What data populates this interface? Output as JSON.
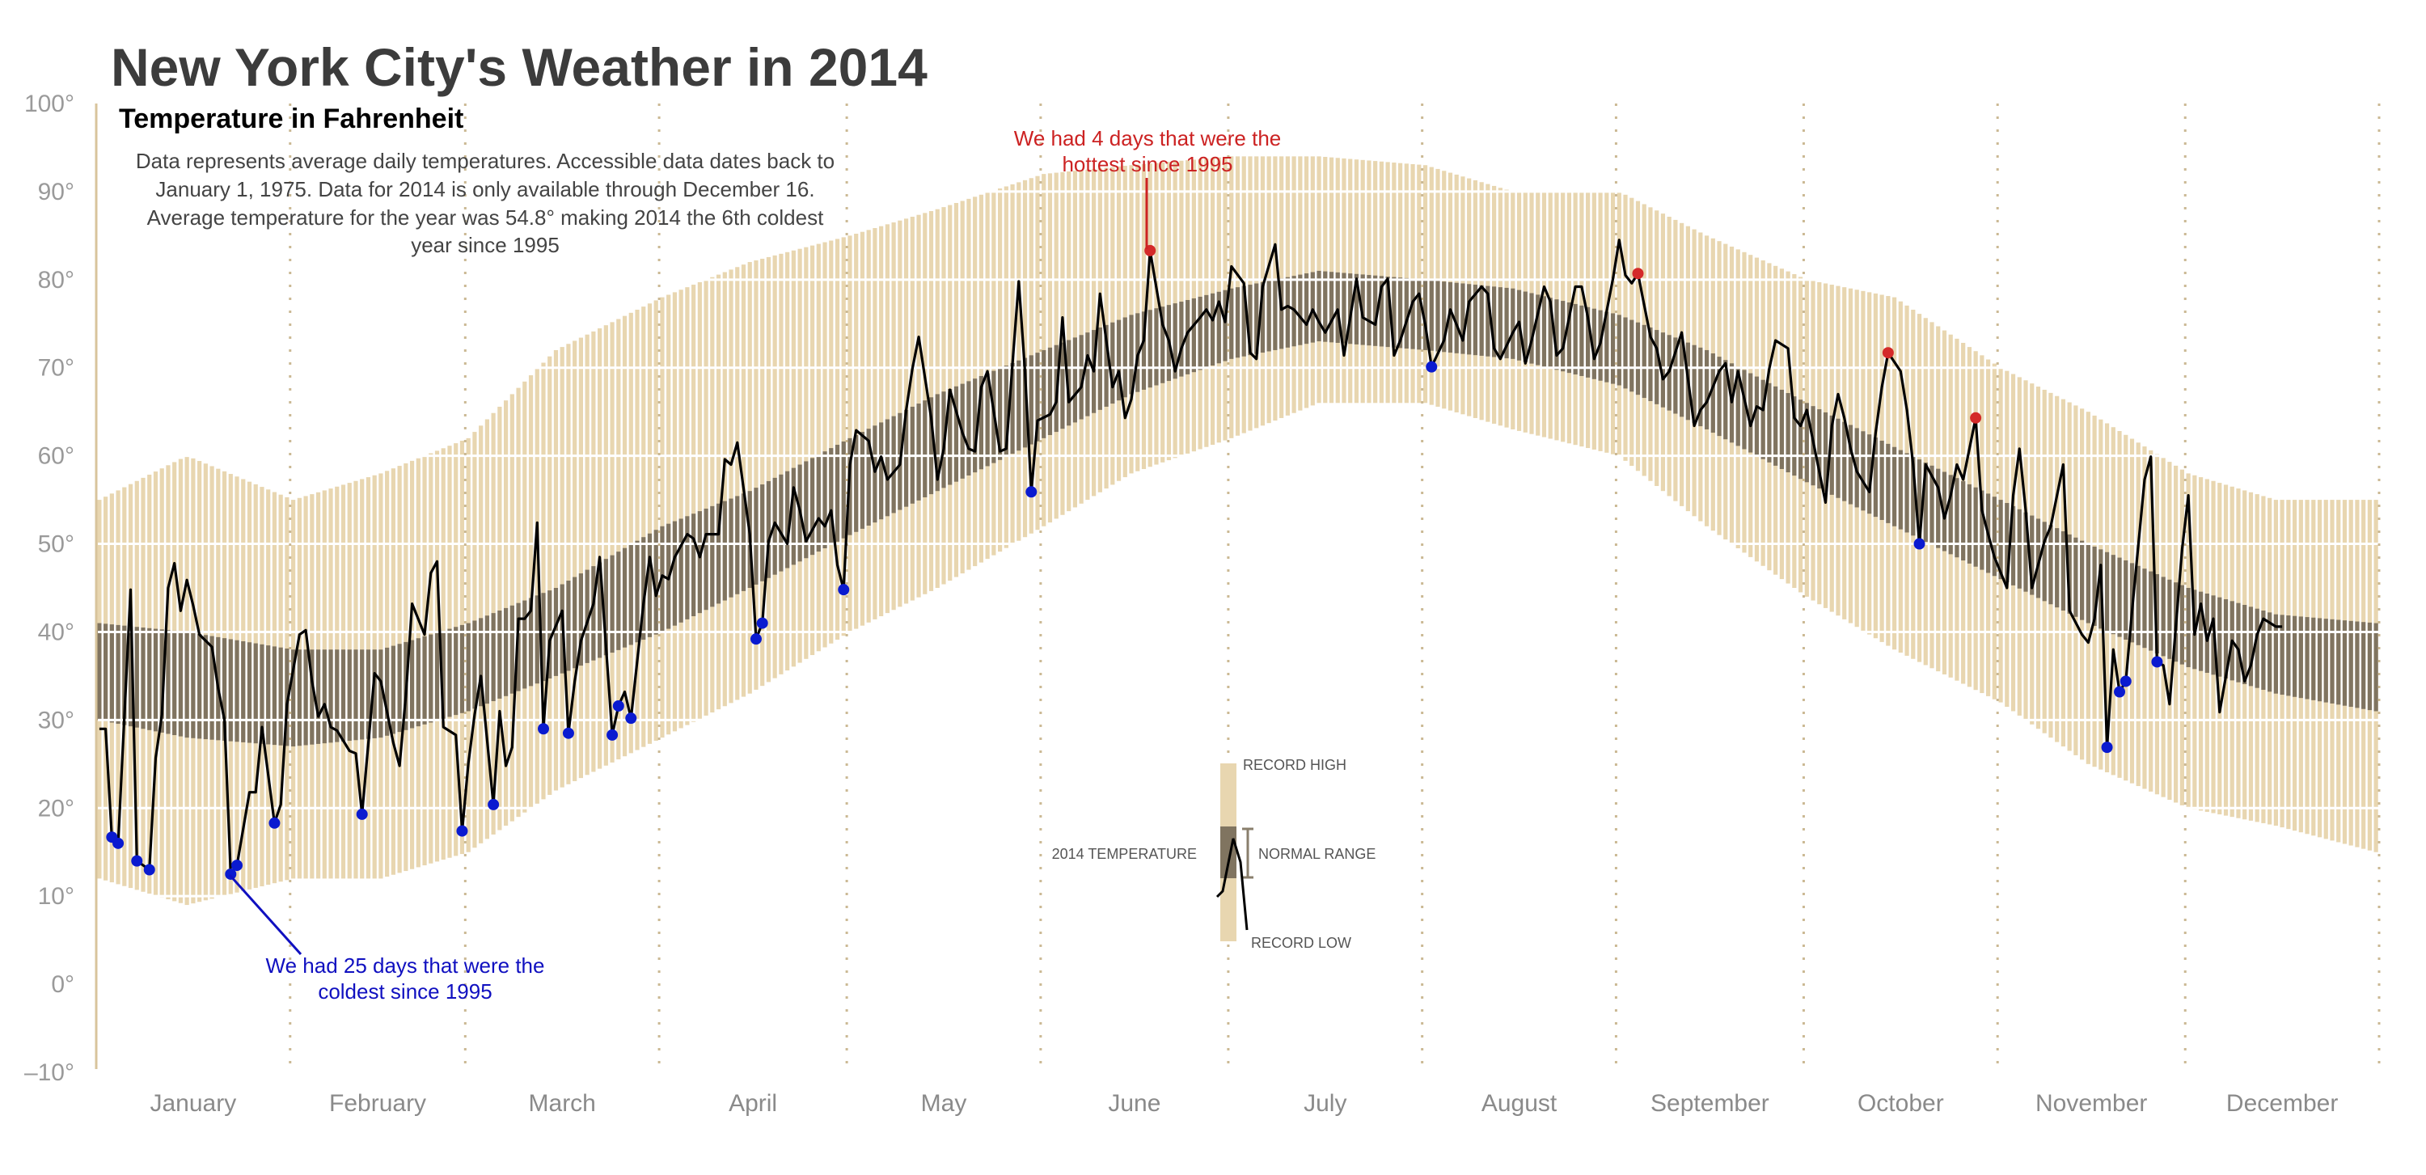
{
  "chart_data": {
    "type": "bar",
    "title": "New York City's Weather in 2014",
    "subtitle": "Temperature in Fahrenheit",
    "description": [
      "Data represents average daily temperatures. Accessible data dates back to",
      "January 1, 1975. Data for 2014 is only available through December 16.",
      "Average temperature for the year was 54.8° making 2014 the 6th coldest",
      "year since 1995"
    ],
    "ylim": [
      -10,
      100
    ],
    "yticks": [
      "100°",
      "90°",
      "80°",
      "70°",
      "60°",
      "50°",
      "40°",
      "30°",
      "20°",
      "10°",
      "0°",
      "–10°"
    ],
    "ytick_values": [
      100,
      90,
      80,
      70,
      60,
      50,
      40,
      30,
      20,
      10,
      0,
      -10
    ],
    "months": [
      "January",
      "February",
      "March",
      "April",
      "May",
      "June",
      "July",
      "August",
      "September",
      "October",
      "November",
      "December"
    ],
    "grid": "horizontal white lines every 10°, dotted month separators",
    "colors": {
      "record": "#e8d6b0",
      "normal": "#807460",
      "line": "#000000",
      "record_low_dot": "#0a1ad0",
      "record_high_dot": "#d42a2a"
    },
    "history_profile": {
      "dates": [
        "01-01",
        "01-15",
        "02-01",
        "02-15",
        "03-01",
        "03-15",
        "04-01",
        "04-15",
        "05-01",
        "05-15",
        "06-01",
        "06-15",
        "07-01",
        "07-15",
        "08-01",
        "08-15",
        "09-01",
        "09-15",
        "10-01",
        "10-15",
        "11-01",
        "11-15",
        "12-01",
        "12-15",
        "12-31"
      ],
      "record_low": [
        12,
        9,
        12,
        12,
        15,
        22,
        28,
        33,
        40,
        45,
        52,
        58,
        62,
        66,
        66,
        63,
        60,
        52,
        44,
        38,
        32,
        25,
        20,
        18,
        15
      ],
      "normal_low": [
        30,
        28,
        27,
        28,
        31,
        35,
        40,
        45,
        51,
        56,
        62,
        67,
        71,
        73,
        72,
        71,
        68,
        63,
        57,
        52,
        46,
        41,
        36,
        33,
        31
      ],
      "normal_high": [
        41,
        40,
        38,
        38,
        41,
        45,
        52,
        56,
        62,
        67,
        72,
        76,
        79,
        81,
        80,
        79,
        76,
        72,
        66,
        61,
        55,
        50,
        45,
        42,
        41
      ],
      "record_high": [
        55,
        60,
        55,
        58,
        62,
        72,
        78,
        82,
        85,
        88,
        92,
        93,
        94,
        94,
        93,
        90,
        90,
        85,
        80,
        78,
        70,
        65,
        58,
        55,
        55
      ]
    },
    "series_2014": [
      [
        "01-01",
        29
      ],
      [
        "01-02",
        29
      ],
      [
        "01-03",
        16.7
      ],
      [
        "01-04",
        16
      ],
      [
        "01-06",
        44.8
      ],
      [
        "01-07",
        14
      ],
      [
        "01-09",
        13
      ],
      [
        "01-10",
        25.7
      ],
      [
        "01-11",
        30.6
      ],
      [
        "01-12",
        45
      ],
      [
        "01-13",
        47.8
      ],
      [
        "01-14",
        42.4
      ],
      [
        "01-15",
        45.9
      ],
      [
        "01-16",
        43
      ],
      [
        "01-17",
        39.7
      ],
      [
        "01-19",
        38.3
      ],
      [
        "01-20",
        33.6
      ],
      [
        "01-21",
        30
      ],
      [
        "01-22",
        12.5
      ],
      [
        "01-23",
        13.5
      ],
      [
        "01-25",
        21.8
      ],
      [
        "01-26",
        21.8
      ],
      [
        "01-27",
        29.2
      ],
      [
        "01-29",
        18.3
      ],
      [
        "01-30",
        20.4
      ],
      [
        "01-31",
        31.8
      ],
      [
        "02-02",
        39.7
      ],
      [
        "02-03",
        40.2
      ],
      [
        "02-04",
        34.4
      ],
      [
        "02-05",
        30.4
      ],
      [
        "02-06",
        31.8
      ],
      [
        "02-07",
        29.2
      ],
      [
        "02-08",
        28.8
      ],
      [
        "02-10",
        26.5
      ],
      [
        "02-11",
        26.2
      ],
      [
        "02-12",
        19.3
      ],
      [
        "02-14",
        35.3
      ],
      [
        "02-15",
        34.4
      ],
      [
        "02-17",
        27.4
      ],
      [
        "02-18",
        24.8
      ],
      [
        "02-19",
        32.7
      ],
      [
        "02-20",
        43.2
      ],
      [
        "02-22",
        39.7
      ],
      [
        "02-23",
        46.7
      ],
      [
        "02-24",
        48
      ],
      [
        "02-25",
        29.2
      ],
      [
        "02-27",
        28.3
      ],
      [
        "02-28",
        17.4
      ],
      [
        "03-01",
        25.1
      ],
      [
        "03-02",
        30.6
      ],
      [
        "03-03",
        35
      ],
      [
        "03-05",
        20.4
      ],
      [
        "03-06",
        31
      ],
      [
        "03-07",
        24.8
      ],
      [
        "03-08",
        26.9
      ],
      [
        "03-09",
        41.5
      ],
      [
        "03-10",
        41.5
      ],
      [
        "03-11",
        42.4
      ],
      [
        "03-12",
        52.4
      ],
      [
        "03-13",
        29
      ],
      [
        "03-14",
        39
      ],
      [
        "03-16",
        42.4
      ],
      [
        "03-17",
        28.5
      ],
      [
        "03-18",
        34.4
      ],
      [
        "03-19",
        39
      ],
      [
        "03-21",
        43.2
      ],
      [
        "03-22",
        48.5
      ],
      [
        "03-24",
        28.3
      ],
      [
        "03-25",
        31.6
      ],
      [
        "03-26",
        33.2
      ],
      [
        "03-27",
        30.2
      ],
      [
        "03-29",
        43.2
      ],
      [
        "03-30",
        48.5
      ],
      [
        "03-31",
        44.1
      ],
      [
        "04-01",
        46.4
      ],
      [
        "04-02",
        46
      ],
      [
        "04-03",
        48.5
      ],
      [
        "04-05",
        51.1
      ],
      [
        "04-06",
        50.6
      ],
      [
        "04-07",
        48.5
      ],
      [
        "04-08",
        51.1
      ],
      [
        "04-10",
        51.1
      ],
      [
        "04-11",
        59.6
      ],
      [
        "04-12",
        59
      ],
      [
        "04-13",
        61.5
      ],
      [
        "04-15",
        51.1
      ],
      [
        "04-16",
        39.2
      ],
      [
        "04-17",
        41
      ],
      [
        "04-18",
        50.3
      ],
      [
        "04-19",
        52.4
      ],
      [
        "04-21",
        50
      ],
      [
        "04-22",
        56.4
      ],
      [
        "04-23",
        53.8
      ],
      [
        "04-24",
        50.3
      ],
      [
        "04-26",
        52.9
      ],
      [
        "04-27",
        52
      ],
      [
        "04-28",
        53.8
      ],
      [
        "04-29",
        47.6
      ],
      [
        "04-30",
        44.8
      ],
      [
        "05-01",
        59
      ],
      [
        "05-02",
        62.9
      ],
      [
        "05-04",
        61.7
      ],
      [
        "05-05",
        58.2
      ],
      [
        "05-06",
        59.9
      ],
      [
        "05-07",
        57.3
      ],
      [
        "05-09",
        59
      ],
      [
        "05-10",
        65.2
      ],
      [
        "05-11",
        69.9
      ],
      [
        "05-12",
        73.5
      ],
      [
        "05-14",
        64.3
      ],
      [
        "05-15",
        57.3
      ],
      [
        "05-16",
        60.8
      ],
      [
        "05-17",
        67.5
      ],
      [
        "05-19",
        62.6
      ],
      [
        "05-20",
        60.8
      ],
      [
        "05-21",
        60.5
      ],
      [
        "05-22",
        67.8
      ],
      [
        "05-23",
        69.6
      ],
      [
        "05-25",
        60.5
      ],
      [
        "05-26",
        60.8
      ],
      [
        "05-27",
        70.5
      ],
      [
        "05-28",
        79.8
      ],
      [
        "05-29",
        69.6
      ],
      [
        "05-30",
        55.9
      ],
      [
        "05-31",
        64
      ],
      [
        "06-02",
        64.7
      ],
      [
        "06-03",
        66.1
      ],
      [
        "06-04",
        75.7
      ],
      [
        "06-05",
        66.1
      ],
      [
        "06-07",
        67.8
      ],
      [
        "06-08",
        71.4
      ],
      [
        "06-09",
        69.6
      ],
      [
        "06-10",
        78.4
      ],
      [
        "06-12",
        67.8
      ],
      [
        "06-13",
        69.6
      ],
      [
        "06-14",
        64.3
      ],
      [
        "06-15",
        66.4
      ],
      [
        "06-16",
        71.4
      ],
      [
        "06-17",
        73.1
      ],
      [
        "06-18",
        83.3
      ],
      [
        "06-20",
        74.9
      ],
      [
        "06-21",
        73.1
      ],
      [
        "06-22",
        69.6
      ],
      [
        "06-23",
        72.2
      ],
      [
        "06-24",
        74
      ],
      [
        "06-26",
        75.7
      ],
      [
        "06-27",
        76.6
      ],
      [
        "06-28",
        75.4
      ],
      [
        "06-29",
        77.5
      ],
      [
        "06-30",
        75.2
      ],
      [
        "07-01",
        81.5
      ],
      [
        "07-03",
        79.6
      ],
      [
        "07-04",
        71.7
      ],
      [
        "07-05",
        71
      ],
      [
        "07-06",
        79.2
      ],
      [
        "07-08",
        84
      ],
      [
        "07-09",
        76.6
      ],
      [
        "07-10",
        77
      ],
      [
        "07-11",
        76.6
      ],
      [
        "07-13",
        74.9
      ],
      [
        "07-14",
        76.6
      ],
      [
        "07-15",
        75.2
      ],
      [
        "07-16",
        74
      ],
      [
        "07-18",
        76.6
      ],
      [
        "07-19",
        71.4
      ],
      [
        "07-20",
        75.7
      ],
      [
        "07-21",
        80.1
      ],
      [
        "07-22",
        75.7
      ],
      [
        "07-24",
        74.9
      ],
      [
        "07-25",
        79.2
      ],
      [
        "07-26",
        80.1
      ],
      [
        "07-27",
        71.4
      ],
      [
        "07-28",
        73.1
      ],
      [
        "07-30",
        77.5
      ],
      [
        "07-31",
        78.4
      ],
      [
        "08-01",
        74.9
      ],
      [
        "08-02",
        70.1
      ],
      [
        "08-04",
        73.1
      ],
      [
        "08-05",
        76.6
      ],
      [
        "08-06",
        74.9
      ],
      [
        "08-07",
        73.1
      ],
      [
        "08-08",
        77.5
      ],
      [
        "08-10",
        79.2
      ],
      [
        "08-11",
        78.4
      ],
      [
        "08-12",
        72.2
      ],
      [
        "08-13",
        71
      ],
      [
        "08-15",
        74
      ],
      [
        "08-16",
        75.2
      ],
      [
        "08-17",
        70.5
      ],
      [
        "08-18",
        73.1
      ],
      [
        "08-20",
        79.2
      ],
      [
        "08-21",
        77.5
      ],
      [
        "08-22",
        71.4
      ],
      [
        "08-23",
        72.2
      ],
      [
        "08-25",
        79.2
      ],
      [
        "08-26",
        79.2
      ],
      [
        "08-27",
        75.7
      ],
      [
        "08-28",
        71
      ],
      [
        "08-29",
        72.8
      ],
      [
        "08-31",
        80.1
      ],
      [
        "09-01",
        84.5
      ],
      [
        "09-02",
        80.5
      ],
      [
        "09-03",
        79.6
      ],
      [
        "09-04",
        80.7
      ],
      [
        "09-06",
        73.5
      ],
      [
        "09-07",
        72.2
      ],
      [
        "09-08",
        68.7
      ],
      [
        "09-09",
        69.6
      ],
      [
        "09-11",
        74
      ],
      [
        "09-12",
        68.7
      ],
      [
        "09-13",
        63.4
      ],
      [
        "09-14",
        65.2
      ],
      [
        "09-15",
        66.1
      ],
      [
        "09-17",
        69.6
      ],
      [
        "09-18",
        70.5
      ],
      [
        "09-19",
        66.1
      ],
      [
        "09-20",
        69.6
      ],
      [
        "09-22",
        63.4
      ],
      [
        "09-23",
        65.6
      ],
      [
        "09-24",
        65.2
      ],
      [
        "09-25",
        69.9
      ],
      [
        "09-26",
        73.1
      ],
      [
        "09-28",
        72.2
      ],
      [
        "09-29",
        64.3
      ],
      [
        "09-30",
        63.4
      ],
      [
        "10-01",
        65.2
      ],
      [
        "10-04",
        54.7
      ],
      [
        "10-05",
        63.4
      ],
      [
        "10-06",
        67
      ],
      [
        "10-07",
        64.3
      ],
      [
        "10-08",
        60.8
      ],
      [
        "10-09",
        58.2
      ],
      [
        "10-11",
        55.9
      ],
      [
        "10-12",
        62.6
      ],
      [
        "10-13",
        67.8
      ],
      [
        "10-14",
        71.7
      ],
      [
        "10-16",
        69.6
      ],
      [
        "10-17",
        65.2
      ],
      [
        "10-18",
        59
      ],
      [
        "10-19",
        50
      ],
      [
        "10-20",
        59
      ],
      [
        "10-22",
        56.4
      ],
      [
        "10-23",
        52.9
      ],
      [
        "10-24",
        55.5
      ],
      [
        "10-25",
        59
      ],
      [
        "10-26",
        57.3
      ],
      [
        "10-28",
        64.3
      ],
      [
        "10-29",
        53.8
      ],
      [
        "10-30",
        51.1
      ],
      [
        "10-31",
        48.5
      ],
      [
        "11-02",
        45
      ],
      [
        "11-03",
        55.5
      ],
      [
        "11-04",
        60.8
      ],
      [
        "11-05",
        53.8
      ],
      [
        "11-06",
        45
      ],
      [
        "11-08",
        50.3
      ],
      [
        "11-09",
        52
      ],
      [
        "11-10",
        55.5
      ],
      [
        "11-11",
        59
      ],
      [
        "11-12",
        42.4
      ],
      [
        "11-14",
        39.7
      ],
      [
        "11-15",
        38.8
      ],
      [
        "11-16",
        41.5
      ],
      [
        "11-17",
        47.6
      ],
      [
        "11-18",
        26.9
      ],
      [
        "11-19",
        38
      ],
      [
        "11-20",
        33.2
      ],
      [
        "11-21",
        34.4
      ],
      [
        "11-22",
        42.4
      ],
      [
        "11-24",
        57.3
      ],
      [
        "11-25",
        59.9
      ],
      [
        "11-26",
        36.6
      ],
      [
        "11-27",
        36.2
      ],
      [
        "11-28",
        31.8
      ],
      [
        "11-30",
        49.4
      ],
      [
        "12-01",
        55.5
      ],
      [
        "12-02",
        39.7
      ],
      [
        "12-03",
        43.2
      ],
      [
        "12-04",
        39
      ],
      [
        "12-05",
        41.5
      ],
      [
        "12-06",
        30.9
      ],
      [
        "12-08",
        39
      ],
      [
        "12-09",
        38
      ],
      [
        "12-10",
        34.4
      ],
      [
        "12-11",
        36.2
      ],
      [
        "12-12",
        39.7
      ],
      [
        "12-13",
        41.5
      ],
      [
        "12-15",
        40.6
      ],
      [
        "12-16",
        40.6
      ]
    ],
    "record_low_days": [
      [
        "01-03",
        16.7
      ],
      [
        "01-04",
        16
      ],
      [
        "01-07",
        14
      ],
      [
        "01-09",
        13
      ],
      [
        "01-22",
        12.5
      ],
      [
        "01-23",
        13.5
      ],
      [
        "01-29",
        18.3
      ],
      [
        "02-12",
        19.3
      ],
      [
        "02-28",
        17.4
      ],
      [
        "03-05",
        20.4
      ],
      [
        "03-13",
        29
      ],
      [
        "03-17",
        28.5
      ],
      [
        "03-24",
        28.3
      ],
      [
        "03-25",
        31.6
      ],
      [
        "03-27",
        30.2
      ],
      [
        "04-16",
        39.2
      ],
      [
        "04-17",
        41
      ],
      [
        "04-30",
        44.8
      ],
      [
        "05-30",
        55.9
      ],
      [
        "08-02",
        70.1
      ],
      [
        "10-19",
        50
      ],
      [
        "11-18",
        26.9
      ],
      [
        "11-20",
        33.2
      ],
      [
        "11-21",
        34.4
      ],
      [
        "11-26",
        36.6
      ]
    ],
    "record_high_days": [
      [
        "06-18",
        83.3
      ],
      [
        "09-04",
        80.7
      ],
      [
        "10-14",
        71.7
      ],
      [
        "10-28",
        64.3
      ]
    ],
    "annotations": {
      "cold": [
        "We had 25 days that were the",
        "coldest since 1995"
      ],
      "hot": [
        "We had 4 days that were the",
        "hottest since 1995"
      ]
    },
    "legend": {
      "record_high": "RECORD HIGH",
      "normal_range": "NORMAL RANGE",
      "record_low": "RECORD LOW",
      "temp_2014": "2014 TEMPERATURE"
    }
  }
}
